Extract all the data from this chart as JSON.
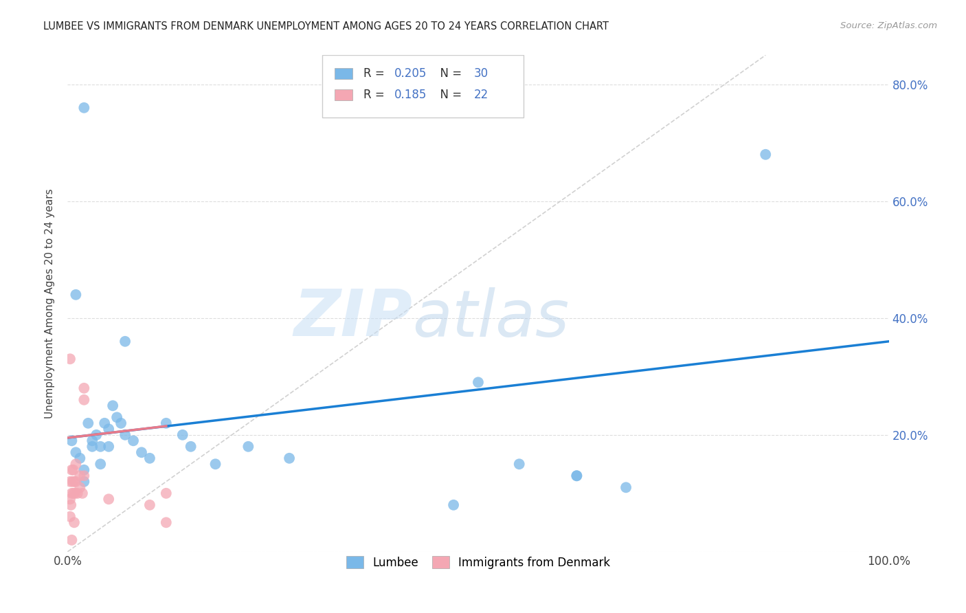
{
  "title": "LUMBEE VS IMMIGRANTS FROM DENMARK UNEMPLOYMENT AMONG AGES 20 TO 24 YEARS CORRELATION CHART",
  "source": "Source: ZipAtlas.com",
  "ylabel": "Unemployment Among Ages 20 to 24 years",
  "xlim": [
    0.0,
    1.0
  ],
  "ylim": [
    0.0,
    0.85
  ],
  "xticks": [
    0.0,
    0.1,
    0.2,
    0.3,
    0.4,
    0.5,
    0.6,
    0.7,
    0.8,
    0.9,
    1.0
  ],
  "xtick_labels": [
    "0.0%",
    "",
    "",
    "",
    "",
    "",
    "",
    "",
    "",
    "",
    "100.0%"
  ],
  "yticks": [
    0.0,
    0.2,
    0.4,
    0.6,
    0.8
  ],
  "ytick_labels": [
    "",
    "20.0%",
    "40.0%",
    "60.0%",
    "80.0%"
  ],
  "lumbee_color": "#7ab8e8",
  "denmark_color": "#f4a7b3",
  "trend_blue": "#1a7fd4",
  "trend_pink": "#e87a8a",
  "diagonal_color": "#cccccc",
  "grid_color": "#dddddd",
  "watermark_zip": "ZIP",
  "watermark_atlas": "atlas",
  "legend_r_lumbee": "0.205",
  "legend_n_lumbee": "30",
  "legend_r_denmark": "0.185",
  "legend_n_denmark": "22",
  "lumbee_x": [
    0.005,
    0.01,
    0.015,
    0.02,
    0.02,
    0.025,
    0.03,
    0.03,
    0.035,
    0.04,
    0.04,
    0.045,
    0.05,
    0.05,
    0.055,
    0.06,
    0.065,
    0.07,
    0.08,
    0.09,
    0.1,
    0.12,
    0.14,
    0.15,
    0.18,
    0.22,
    0.27,
    0.5,
    0.55,
    0.62
  ],
  "lumbee_y": [
    0.19,
    0.17,
    0.16,
    0.14,
    0.12,
    0.22,
    0.19,
    0.18,
    0.2,
    0.18,
    0.15,
    0.22,
    0.21,
    0.18,
    0.25,
    0.23,
    0.22,
    0.2,
    0.19,
    0.17,
    0.16,
    0.22,
    0.2,
    0.18,
    0.15,
    0.18,
    0.16,
    0.29,
    0.15,
    0.13
  ],
  "lumbee_special": [
    [
      0.02,
      0.76
    ],
    [
      0.01,
      0.44
    ],
    [
      0.07,
      0.36
    ],
    [
      0.68,
      0.11
    ],
    [
      0.85,
      0.68
    ],
    [
      0.47,
      0.08
    ],
    [
      0.62,
      0.13
    ]
  ],
  "denmark_x": [
    0.003,
    0.003,
    0.003,
    0.004,
    0.005,
    0.005,
    0.006,
    0.007,
    0.007,
    0.008,
    0.009,
    0.01,
    0.01,
    0.012,
    0.015,
    0.015,
    0.018,
    0.02,
    0.02,
    0.05,
    0.1,
    0.12
  ],
  "denmark_y": [
    0.06,
    0.09,
    0.12,
    0.08,
    0.1,
    0.14,
    0.12,
    0.1,
    0.14,
    0.12,
    0.1,
    0.12,
    0.15,
    0.1,
    0.11,
    0.13,
    0.1,
    0.13,
    0.26,
    0.09,
    0.08,
    0.1
  ],
  "denmark_special": [
    [
      0.003,
      0.33
    ],
    [
      0.005,
      0.02
    ],
    [
      0.008,
      0.05
    ],
    [
      0.02,
      0.28
    ],
    [
      0.12,
      0.05
    ]
  ],
  "trend_lumbee_x0": 0.0,
  "trend_lumbee_y0": 0.195,
  "trend_lumbee_x1": 1.0,
  "trend_lumbee_y1": 0.36,
  "trend_denmark_x0": 0.0,
  "trend_denmark_y0": 0.195,
  "trend_denmark_x1": 0.12,
  "trend_denmark_y1": 0.215
}
